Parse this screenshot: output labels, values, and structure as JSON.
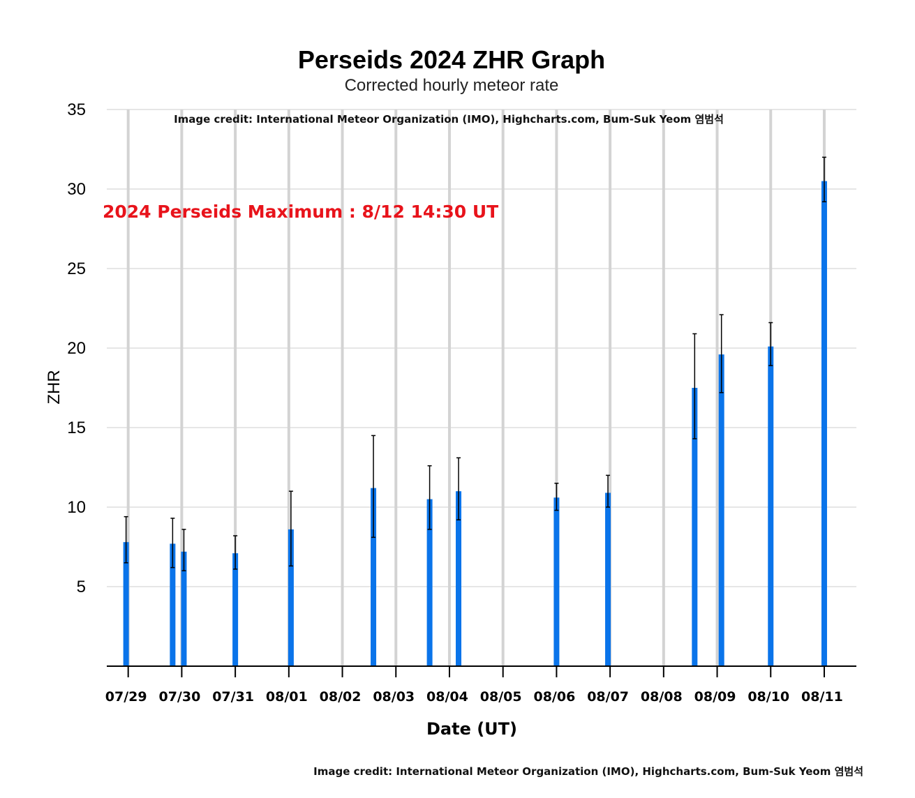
{
  "chart_data": {
    "type": "bar",
    "title": "Perseids 2024 ZHR Graph",
    "subtitle": "Corrected hourly meteor rate",
    "xlabel": "Date (UT)",
    "ylabel": "ZHR",
    "credit_inner": "Image credit: International Meteor Organization (IMO), Highcharts.com, Bum-Suk Yeom 염범석",
    "credit_bottom": "Image credit: International Meteor Organization (IMO), Highcharts.com, Bum-Suk Yeom 염범석",
    "annotation": "2024 Perseids Maximum : 8/12 14:30 UT",
    "annotation_color": "#e8131b",
    "bar_color": "#0a74ea",
    "grid": true,
    "ylim": [
      0,
      35
    ],
    "yticks": [
      "5",
      "10",
      "15",
      "20",
      "25",
      "30",
      "35"
    ],
    "xticks": [
      "07/29",
      "07/30",
      "07/31",
      "08/01",
      "08/02",
      "08/03",
      "08/04",
      "08/05",
      "08/06",
      "08/07",
      "08/08",
      "08/09",
      "08/10",
      "08/11"
    ],
    "xlim_days": [
      28.6,
      42.6
    ],
    "points": [
      {
        "date_day": 28.96,
        "zhr": 7.8,
        "low": 6.5,
        "high": 9.4
      },
      {
        "date_day": 29.83,
        "zhr": 7.7,
        "low": 6.2,
        "high": 9.3
      },
      {
        "date_day": 30.04,
        "zhr": 7.2,
        "low": 6.0,
        "high": 8.6
      },
      {
        "date_day": 31.0,
        "zhr": 7.1,
        "low": 6.1,
        "high": 8.2
      },
      {
        "date_day": 32.04,
        "zhr": 8.6,
        "low": 6.3,
        "high": 11.0
      },
      {
        "date_day": 33.58,
        "zhr": 11.2,
        "low": 8.1,
        "high": 14.5
      },
      {
        "date_day": 34.63,
        "zhr": 10.5,
        "low": 8.6,
        "high": 12.6
      },
      {
        "date_day": 35.17,
        "zhr": 11.0,
        "low": 9.2,
        "high": 13.1
      },
      {
        "date_day": 37.0,
        "zhr": 10.6,
        "low": 9.8,
        "high": 11.5
      },
      {
        "date_day": 37.96,
        "zhr": 10.9,
        "low": 10.0,
        "high": 12.0
      },
      {
        "date_day": 39.58,
        "zhr": 17.5,
        "low": 14.3,
        "high": 20.9
      },
      {
        "date_day": 40.08,
        "zhr": 19.6,
        "low": 17.2,
        "high": 22.1
      },
      {
        "date_day": 41.0,
        "zhr": 20.1,
        "low": 18.9,
        "high": 21.6
      },
      {
        "date_day": 42.0,
        "zhr": 30.5,
        "low": 29.2,
        "high": 32.0
      }
    ]
  }
}
